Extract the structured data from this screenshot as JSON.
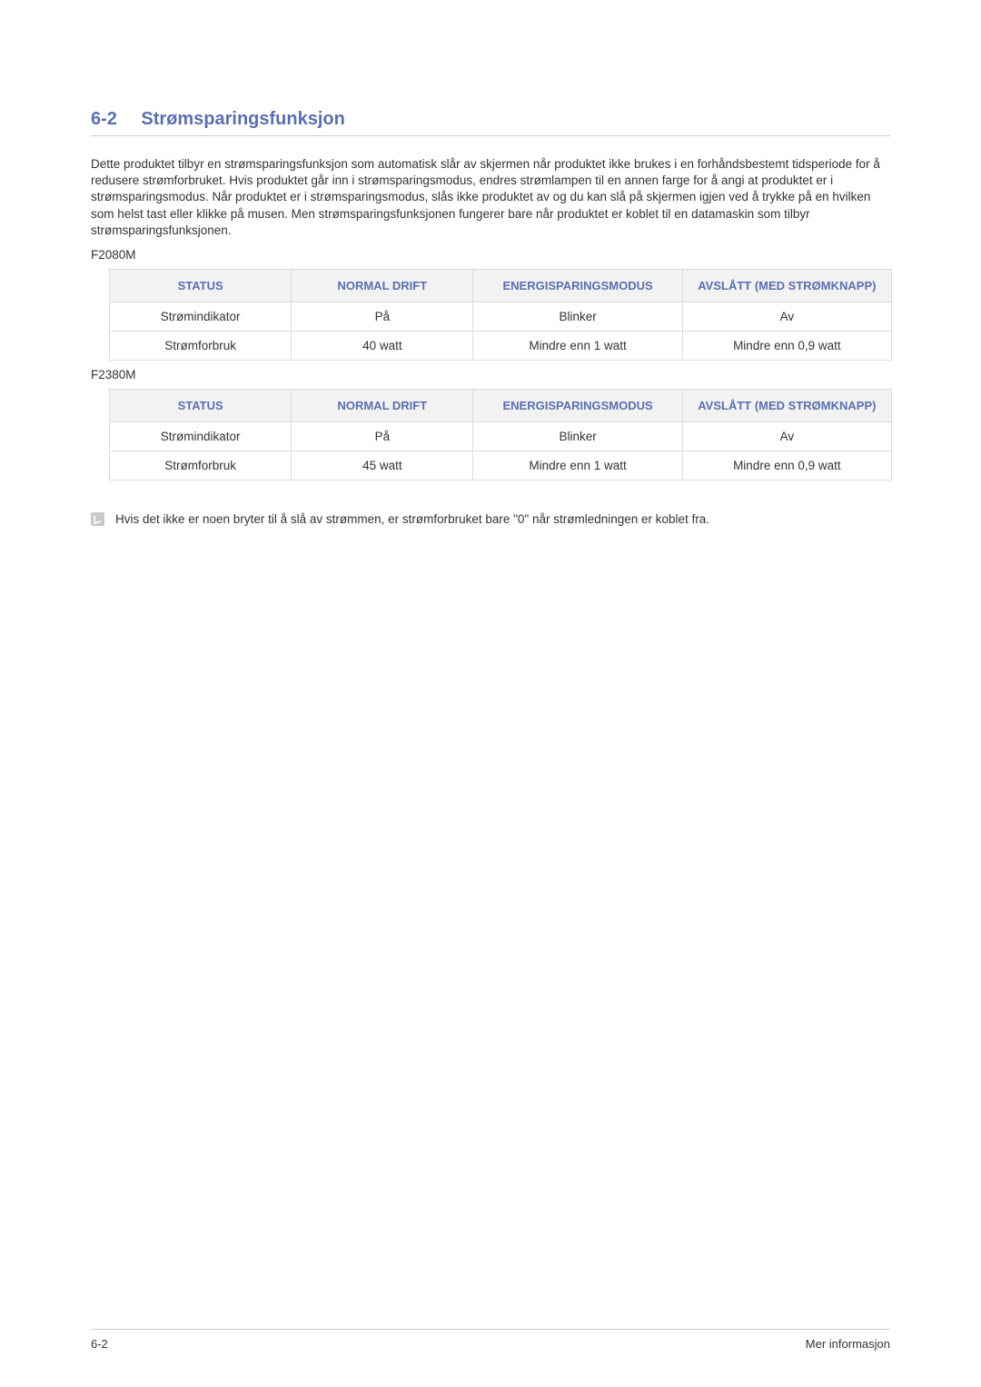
{
  "section": {
    "number": "6-2",
    "title": "Strømsparingsfunksjon"
  },
  "paragraph": "Dette produktet tilbyr en strømsparingsfunksjon som automatisk slår av skjermen når produktet ikke brukes i en forhåndsbestemt tidsperiode for å redusere strømforbruket. Hvis produktet går inn i strømsparingsmodus, endres strømlampen til en annen farge for å angi at produktet er i strømsparingsmodus. Når produktet er i strømsparingsmodus, slås ikke produktet av og du kan slå på skjermen igjen ved å trykke på en hvilken som helst tast eller klikke på musen. Men strømsparingsfunksjonen fungerer bare når produktet er koblet til en datamaskin som tilbyr strømsparingsfunksjonen.",
  "tables": [
    {
      "model": "F2080M",
      "columns": [
        "STATUS",
        "NORMAL DRIFT",
        "ENERGISPARINGSMODUS",
        "AVSLÅTT (MED STRØMKNAPP)"
      ],
      "rows": [
        [
          "Strømindikator",
          "På",
          "Blinker",
          "Av"
        ],
        [
          "Strømforbruk",
          "40 watt",
          "Mindre enn 1 watt",
          "Mindre enn 0,9 watt"
        ]
      ]
    },
    {
      "model": "F2380M",
      "columns": [
        "STATUS",
        "NORMAL DRIFT",
        "ENERGISPARINGSMODUS",
        "AVSLÅTT (MED STRØMKNAPP)"
      ],
      "rows": [
        [
          "Strømindikator",
          "På",
          "Blinker",
          "Av"
        ],
        [
          "Strømforbruk",
          "45 watt",
          "Mindre enn 1 watt",
          "Mindre enn 0,9 watt"
        ]
      ]
    }
  ],
  "note": "Hvis det ikke er noen bryter til å slå av strømmen, er strømforbruket bare \"0\" når strømledningen er koblet fra.",
  "footer": {
    "left": "6-2",
    "right": "Mer informasjon"
  },
  "style": {
    "heading_color": "#5b6fae",
    "table_header_bg": "#f2f2f2",
    "table_header_color": "#5b6fae",
    "border_color": "#dcdcdc",
    "body_text_color": "#333333",
    "page_bg": "#ffffff",
    "font_family": "Arial",
    "heading_fontsize_pt": 15,
    "body_fontsize_pt": 10,
    "table_header_fontsize_pt": 10,
    "table_cell_fontsize_pt": 10
  }
}
